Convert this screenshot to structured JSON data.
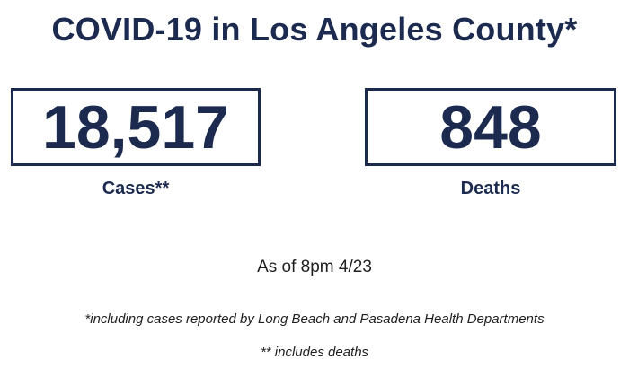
{
  "title": "COVID-19 in Los Angeles County*",
  "stats": [
    {
      "value": "18,517",
      "label": "Cases**"
    },
    {
      "value": "848",
      "label": "Deaths"
    }
  ],
  "as_of": "As of 8pm 4/23",
  "footnotes": [
    "*including cases reported by Long Beach and Pasadena Health Departments",
    "** includes deaths"
  ],
  "colors": {
    "primary": "#1b2a4e",
    "text": "#1f1f1f",
    "background": "#ffffff"
  }
}
